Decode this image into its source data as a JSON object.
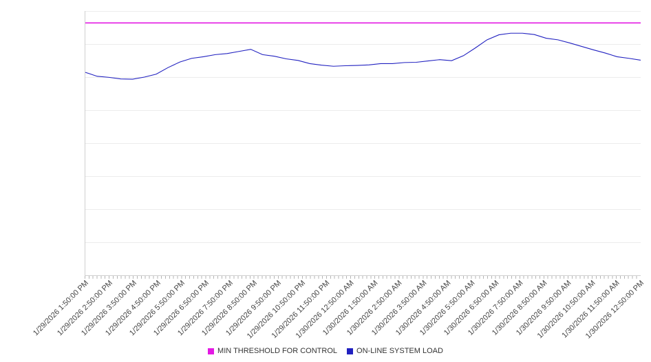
{
  "chart_data": {
    "type": "line",
    "title": "",
    "xlabel": "",
    "ylabel": "",
    "y_axis": {
      "min": 0,
      "max": 100,
      "labels_visible": false,
      "note": "no y-axis tick labels shown; values estimated as percent of plot height"
    },
    "grid": true,
    "legend_position": "bottom",
    "x_labels": [
      "1/29/2026 1:50:00 PM",
      "1/29/2026 2:50:00 PM",
      "1/29/2026 3:50:00 PM",
      "1/29/2026 4:50:00 PM",
      "1/29/2026 5:50:00 PM",
      "1/29/2026 6:50:00 PM",
      "1/29/2026 7:50:00 PM",
      "1/29/2026 8:50:00 PM",
      "1/29/2026 9:50:00 PM",
      "1/29/2026 10:50:00 PM",
      "1/29/2026 11:50:00 PM",
      "1/30/2026 12:50:00 AM",
      "1/30/2026 1:50:00 AM",
      "1/30/2026 2:50:00 AM",
      "1/30/2026 3:50:00 AM",
      "1/30/2026 4:50:00 AM",
      "1/30/2026 5:50:00 AM",
      "1/30/2026 6:50:00 AM",
      "1/30/2026 7:50:00 AM",
      "1/30/2026 8:50:00 AM",
      "1/30/2026 9:50:00 AM",
      "1/30/2026 10:50:00 AM",
      "1/30/2026 11:50:00 AM",
      "1/30/2026 12:50:00 PM"
    ],
    "series": [
      {
        "name": "MIN THRESHOLD FOR CONTROL",
        "color": "#e319e3",
        "values": [
          95.5,
          95.5
        ]
      },
      {
        "name": "ON-LINE SYSTEM LOAD",
        "color": "#2020c0",
        "values": [
          76.8,
          75.3,
          74.9,
          74.3,
          74.2,
          75.0,
          76.1,
          78.6,
          80.7,
          82.1,
          82.7,
          83.5,
          83.9,
          84.7,
          85.5,
          83.5,
          82.9,
          81.9,
          81.3,
          80.1,
          79.5,
          79.1,
          79.3,
          79.4,
          79.6,
          80.1,
          80.1,
          80.5,
          80.6,
          81.1,
          81.6,
          81.2,
          83.1,
          86.0,
          89.1,
          91.0,
          91.6,
          91.6,
          91.1,
          89.7,
          89.1,
          87.9,
          86.6,
          85.3,
          84.1,
          82.7,
          82.1,
          81.4
        ]
      }
    ]
  },
  "legend": {
    "threshold_label": "MIN THRESHOLD FOR CONTROL",
    "load_label": "ON-LINE SYSTEM LOAD"
  }
}
